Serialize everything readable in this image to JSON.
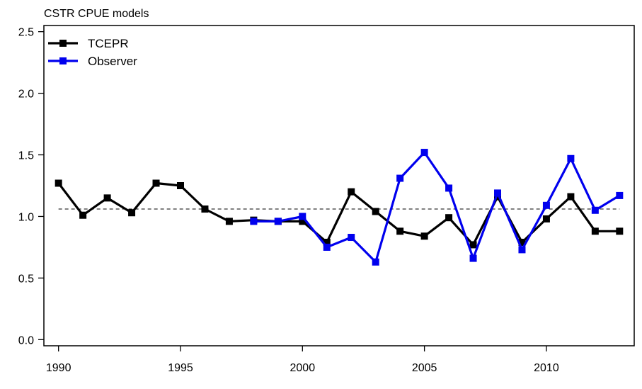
{
  "chart_data": {
    "type": "line",
    "title": "CSTR CPUE models",
    "xlabel": "",
    "ylabel": "",
    "xlim": [
      1989.4,
      2013.6
    ],
    "ylim": [
      -0.05,
      2.55
    ],
    "x_ticks": [
      1990,
      1995,
      2000,
      2005,
      2010
    ],
    "y_ticks": [
      0.0,
      0.5,
      1.0,
      1.5,
      2.0,
      2.5
    ],
    "y_tick_labels": [
      "0.0",
      "0.5",
      "1.0",
      "1.5",
      "2.0",
      "2.5"
    ],
    "reference_line": {
      "y": 1.06,
      "x_range": [
        1990,
        2013
      ],
      "style": "dashed"
    },
    "legend_position": "top-left",
    "grid": false,
    "series": [
      {
        "name": "TCEPR",
        "color": "#000000",
        "x": [
          1990,
          1991,
          1992,
          1993,
          1994,
          1995,
          1996,
          1997,
          1998,
          1999,
          2000,
          2001,
          2002,
          2003,
          2004,
          2005,
          2006,
          2007,
          2008,
          2009,
          2010,
          2011,
          2012,
          2013
        ],
        "values": [
          1.27,
          1.01,
          1.15,
          1.03,
          1.27,
          1.25,
          1.06,
          0.96,
          0.97,
          0.96,
          0.96,
          0.79,
          1.2,
          1.04,
          0.88,
          0.84,
          0.99,
          0.77,
          1.16,
          0.79,
          0.98,
          1.16,
          0.88,
          0.88
        ]
      },
      {
        "name": "Observer",
        "color": "#0000ee",
        "x": [
          1998,
          1999,
          2000,
          2001,
          2002,
          2003,
          2004,
          2005,
          2006,
          2007,
          2008,
          2009,
          2010,
          2011,
          2012,
          2013
        ],
        "values": [
          0.96,
          0.96,
          1.0,
          0.75,
          0.83,
          0.63,
          1.31,
          1.52,
          1.23,
          0.66,
          1.19,
          0.73,
          1.09,
          1.47,
          1.05,
          1.17
        ]
      }
    ]
  }
}
